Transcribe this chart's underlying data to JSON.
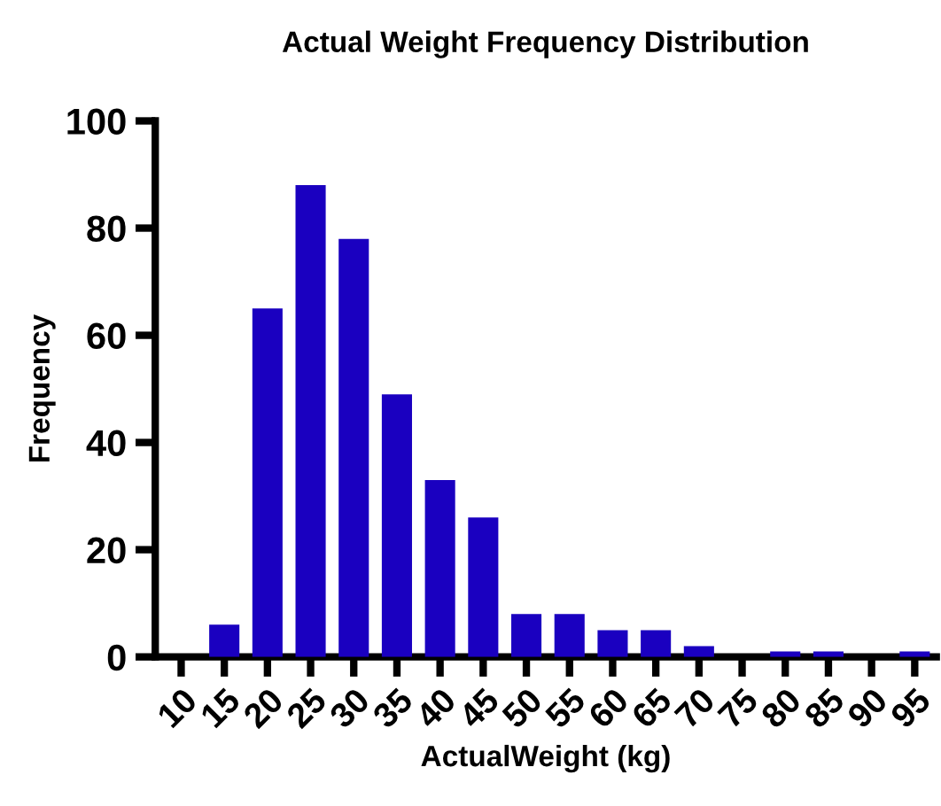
{
  "chart_data": {
    "type": "bar",
    "title": "Actual Weight Frequency Distribution",
    "xlabel": "ActualWeight (kg)",
    "ylabel": "Frequency",
    "categories": [
      "10",
      "15",
      "20",
      "25",
      "30",
      "35",
      "40",
      "45",
      "50",
      "55",
      "60",
      "65",
      "70",
      "75",
      "80",
      "85",
      "90",
      "95"
    ],
    "values": [
      0,
      6,
      65,
      88,
      78,
      49,
      33,
      26,
      8,
      8,
      5,
      5,
      2,
      0,
      1,
      1,
      0,
      1
    ],
    "color": "#1a00c0",
    "ylim": [
      0,
      100
    ],
    "yticks": [
      0,
      20,
      40,
      60,
      80,
      100
    ],
    "grid": false,
    "legend": false
  }
}
